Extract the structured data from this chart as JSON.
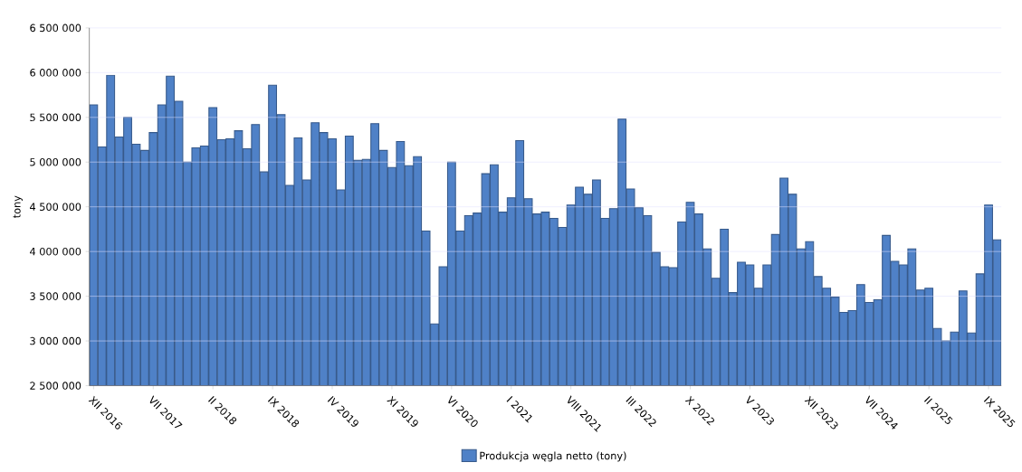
{
  "chart_data": {
    "type": "bar",
    "ylabel": "tony",
    "categories": [
      "XII 2016",
      null,
      null,
      null,
      null,
      null,
      null,
      "VII 2017",
      null,
      null,
      null,
      null,
      null,
      null,
      "II 2018",
      null,
      null,
      null,
      null,
      null,
      null,
      "IX 2018",
      null,
      null,
      null,
      null,
      null,
      null,
      "IV 2019",
      null,
      null,
      null,
      null,
      null,
      null,
      "XI 2019",
      null,
      null,
      null,
      null,
      null,
      null,
      "VI 2020",
      null,
      null,
      null,
      null,
      null,
      null,
      "I 2021",
      null,
      null,
      null,
      null,
      null,
      null,
      "VIII 2021",
      null,
      null,
      null,
      null,
      null,
      null,
      "III 2022",
      null,
      null,
      null,
      null,
      null,
      null,
      "X 2022",
      null,
      null,
      null,
      null,
      null,
      null,
      "V 2023",
      null,
      null,
      null,
      null,
      null,
      null,
      "XII 2023",
      null,
      null,
      null,
      null,
      null,
      null,
      "VII 2024",
      null,
      null,
      null,
      null,
      null,
      null,
      "II 2025",
      null,
      null,
      null,
      null,
      null,
      null,
      "IX 2025",
      null
    ],
    "series": [
      {
        "name": "Produkcja węgla netto (tony)",
        "color": "#4f81c7",
        "values": [
          5640000,
          5170000,
          5970000,
          5280000,
          5500000,
          5200000,
          5130000,
          5330000,
          5640000,
          5960000,
          5680000,
          5000000,
          5160000,
          5180000,
          5610000,
          5250000,
          5260000,
          5350000,
          5150000,
          5420000,
          4890000,
          5860000,
          5530000,
          4740000,
          5270000,
          4800000,
          5440000,
          5330000,
          5260000,
          4690000,
          5290000,
          5020000,
          5030000,
          5430000,
          5130000,
          4940000,
          5230000,
          4960000,
          5060000,
          4230000,
          3190000,
          3830000,
          5000000,
          4230000,
          4400000,
          4430000,
          4870000,
          4970000,
          4440000,
          4600000,
          5240000,
          4590000,
          4420000,
          4440000,
          4370000,
          4270000,
          4520000,
          4720000,
          4640000,
          4800000,
          4370000,
          4480000,
          5480000,
          4700000,
          4490000,
          4400000,
          3990000,
          3830000,
          3820000,
          4330000,
          4550000,
          4420000,
          4030000,
          3700000,
          4250000,
          3540000,
          3880000,
          3850000,
          3590000,
          3850000,
          4190000,
          4820000,
          4640000,
          4030000,
          4110000,
          3720000,
          3590000,
          3490000,
          3320000,
          3340000,
          3630000,
          3430000,
          3460000,
          4180000,
          3890000,
          3850000,
          4030000,
          3570000,
          3590000,
          3140000,
          3000000,
          3100000,
          3560000,
          3090000,
          3750000,
          4520000,
          4130000
        ]
      }
    ],
    "ylim": [
      2500000,
      6500000
    ],
    "yticks": [
      {
        "value": 2500000,
        "label": "2 500 000"
      },
      {
        "value": 3000000,
        "label": "3 000 000"
      },
      {
        "value": 3500000,
        "label": "3 500 000"
      },
      {
        "value": 4000000,
        "label": "4 000 000"
      },
      {
        "value": 4500000,
        "label": "4 500 000"
      },
      {
        "value": 5000000,
        "label": "5 000 000"
      },
      {
        "value": 5500000,
        "label": "5 500 000"
      },
      {
        "value": 6000000,
        "label": "6 000 000"
      },
      {
        "value": 6500000,
        "label": "6 500 000"
      }
    ],
    "grid": "y",
    "legend": "bottom"
  }
}
